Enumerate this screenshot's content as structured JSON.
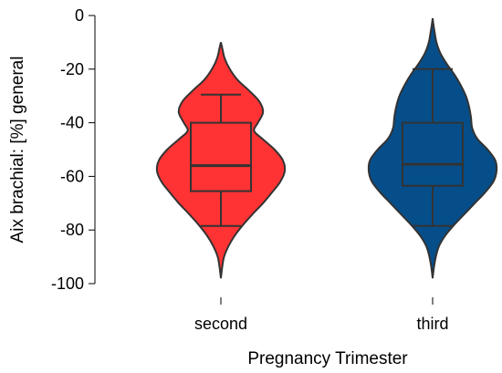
{
  "chart_data": {
    "type": "violin",
    "title": "",
    "xlabel": "Pregnancy Trimester",
    "ylabel": "Aix brachial: [%] general",
    "ylim": [
      -100,
      0
    ],
    "yticks": [
      0,
      -20,
      -40,
      -60,
      -80,
      -100
    ],
    "yticks_labels": [
      "0",
      "-20",
      "-40",
      "-60",
      "-80",
      "-100"
    ],
    "categories": [
      "second",
      "third"
    ],
    "grid": false,
    "legend": "none",
    "series": [
      {
        "category": "second",
        "color": "#FF3333",
        "box": {
          "whisker_low": -78.5,
          "q1": -65.5,
          "median": -56,
          "q3": -40,
          "whisker_high": -29.5
        },
        "range": [
          -98,
          -10
        ],
        "density": [
          [
            -98,
            0.0
          ],
          [
            -94,
            0.02
          ],
          [
            -90,
            0.05
          ],
          [
            -86,
            0.12
          ],
          [
            -82,
            0.22
          ],
          [
            -78,
            0.35
          ],
          [
            -74,
            0.5
          ],
          [
            -70,
            0.66
          ],
          [
            -66,
            0.8
          ],
          [
            -62,
            0.93
          ],
          [
            -58,
            1.0
          ],
          [
            -54,
            0.97
          ],
          [
            -50,
            0.84
          ],
          [
            -46,
            0.65
          ],
          [
            -43,
            0.52
          ],
          [
            -40,
            0.58
          ],
          [
            -36,
            0.66
          ],
          [
            -32,
            0.6
          ],
          [
            -28,
            0.44
          ],
          [
            -24,
            0.26
          ],
          [
            -20,
            0.14
          ],
          [
            -16,
            0.06
          ],
          [
            -12,
            0.02
          ],
          [
            -10,
            0.0
          ]
        ]
      },
      {
        "category": "third",
        "color": "#054E8A",
        "box": {
          "whisker_low": -78.5,
          "q1": -63.5,
          "median": -55.5,
          "q3": -40,
          "whisker_high": -20
        },
        "range": [
          -98,
          -1
        ],
        "density": [
          [
            -98,
            0.0
          ],
          [
            -94,
            0.02
          ],
          [
            -90,
            0.05
          ],
          [
            -86,
            0.1
          ],
          [
            -82,
            0.2
          ],
          [
            -78,
            0.34
          ],
          [
            -74,
            0.5
          ],
          [
            -70,
            0.66
          ],
          [
            -66,
            0.82
          ],
          [
            -62,
            0.95
          ],
          [
            -58,
            1.0
          ],
          [
            -54,
            0.98
          ],
          [
            -50,
            0.86
          ],
          [
            -46,
            0.7
          ],
          [
            -42,
            0.62
          ],
          [
            -38,
            0.6
          ],
          [
            -34,
            0.57
          ],
          [
            -30,
            0.52
          ],
          [
            -26,
            0.44
          ],
          [
            -22,
            0.34
          ],
          [
            -18,
            0.22
          ],
          [
            -14,
            0.12
          ],
          [
            -10,
            0.06
          ],
          [
            -6,
            0.03
          ],
          [
            -3,
            0.01
          ],
          [
            -1,
            0.0
          ]
        ]
      }
    ]
  }
}
